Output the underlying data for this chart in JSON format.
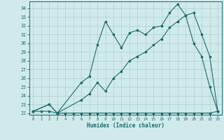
{
  "xlabel": "Humidex (Indice chaleur)",
  "bg_color": "#d0eaeb",
  "grid_color": "#aecfcf",
  "line_color": "#1a6b6b",
  "xlim": [
    -0.5,
    23.5
  ],
  "ylim": [
    21.8,
    34.8
  ],
  "yticks": [
    22,
    23,
    24,
    25,
    26,
    27,
    28,
    29,
    30,
    31,
    32,
    33,
    34
  ],
  "xticks": [
    0,
    1,
    2,
    3,
    4,
    5,
    6,
    7,
    8,
    9,
    10,
    11,
    12,
    13,
    14,
    15,
    16,
    17,
    18,
    19,
    20,
    21,
    22,
    23
  ],
  "series_flat_x": [
    0,
    1,
    2,
    3,
    4,
    5,
    6,
    7,
    8,
    9,
    10,
    11,
    12,
    13,
    14,
    15,
    16,
    17,
    18,
    19,
    20,
    21,
    22,
    23
  ],
  "series_flat_y": [
    22.2,
    22.2,
    22.2,
    22.0,
    22.0,
    22.0,
    22.0,
    22.0,
    22.0,
    22.0,
    22.0,
    22.0,
    22.0,
    22.0,
    22.0,
    22.0,
    22.0,
    22.0,
    22.0,
    22.0,
    22.0,
    22.0,
    22.0,
    22.2
  ],
  "series_jagged_x": [
    0,
    2,
    3,
    6,
    7,
    8,
    9,
    10,
    11,
    12,
    13,
    14,
    15,
    16,
    17,
    18,
    19,
    20,
    21,
    22,
    23
  ],
  "series_jagged_y": [
    22.2,
    23.0,
    22.0,
    25.5,
    26.2,
    29.8,
    32.5,
    31.0,
    29.5,
    31.2,
    31.5,
    31.0,
    31.8,
    32.0,
    33.5,
    34.5,
    33.2,
    30.0,
    28.5,
    25.0,
    22.2
  ],
  "series_smooth_x": [
    0,
    2,
    3,
    6,
    7,
    8,
    9,
    10,
    11,
    12,
    13,
    14,
    15,
    16,
    17,
    18,
    19,
    20,
    21,
    22,
    23
  ],
  "series_smooth_y": [
    22.2,
    23.0,
    22.0,
    23.5,
    24.2,
    25.5,
    24.5,
    26.0,
    26.8,
    28.0,
    28.5,
    29.0,
    29.8,
    30.5,
    31.8,
    32.5,
    33.2,
    33.5,
    31.0,
    28.5,
    22.2
  ]
}
